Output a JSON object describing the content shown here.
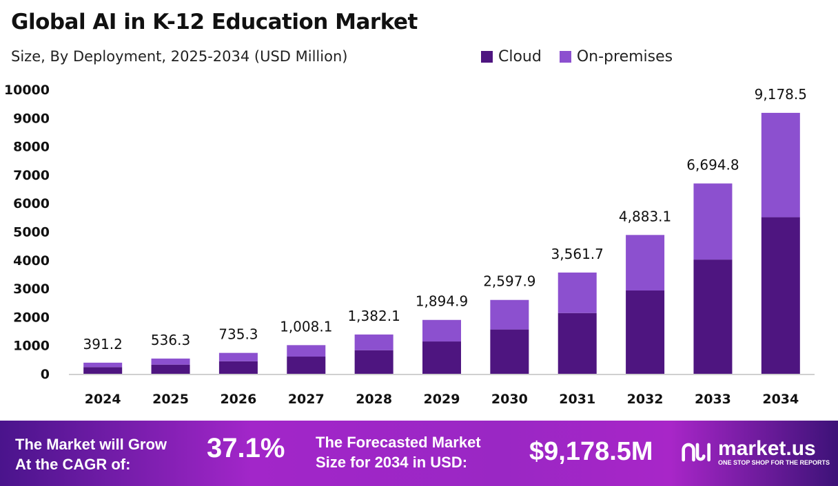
{
  "header": {
    "title": "Global AI in K-12 Education Market",
    "subtitle": "Size, By Deployment, 2025-2034 (USD Million)"
  },
  "chart_data": {
    "type": "bar",
    "stacked": true,
    "title": "Global AI in K-12 Education Market",
    "subtitle": "Size, By Deployment, 2025-2034 (USD Million)",
    "categories": [
      "2024",
      "2025",
      "2026",
      "2027",
      "2028",
      "2029",
      "2030",
      "2031",
      "2032",
      "2033",
      "2034"
    ],
    "series": [
      {
        "name": "Cloud",
        "color": "#4e1580",
        "values": [
          235,
          322,
          441,
          605,
          829,
          1137,
          1559,
          2137,
          2930,
          4017,
          5507
        ]
      },
      {
        "name": "On-premises",
        "color": "#8c50cf",
        "values": [
          156.2,
          214.3,
          294.3,
          403.1,
          553.1,
          757.9,
          1038.9,
          1424.7,
          1953.1,
          2677.8,
          3671.5
        ]
      }
    ],
    "totals": [
      391.2,
      536.3,
      735.3,
      1008.1,
      1382.1,
      1894.9,
      2597.9,
      3561.7,
      4883.1,
      6694.8,
      9178.5
    ],
    "total_labels": [
      "391.2",
      "536.3",
      "735.3",
      "1,008.1",
      "1,382.1",
      "1,894.9",
      "2,597.9",
      "3,561.7",
      "4,883.1",
      "6,694.8",
      "9,178.5"
    ],
    "yticks": [
      "0",
      "1000",
      "2000",
      "3000",
      "4000",
      "5000",
      "6000",
      "7000",
      "8000",
      "9000",
      "10000"
    ],
    "ylim": [
      0,
      10000
    ],
    "grid": false,
    "legend": "top-right"
  },
  "footer": {
    "cagr_label_1": "The Market will Grow",
    "cagr_label_2": "At the CAGR of:",
    "cagr_value": "37.1%",
    "forecast_label_1": "The Forecasted Market",
    "forecast_label_2": "Size for 2034 in USD:",
    "forecast_value": "$9,178.5M",
    "brand": "market.us",
    "tagline": "ONE STOP SHOP FOR THE REPORTS"
  }
}
